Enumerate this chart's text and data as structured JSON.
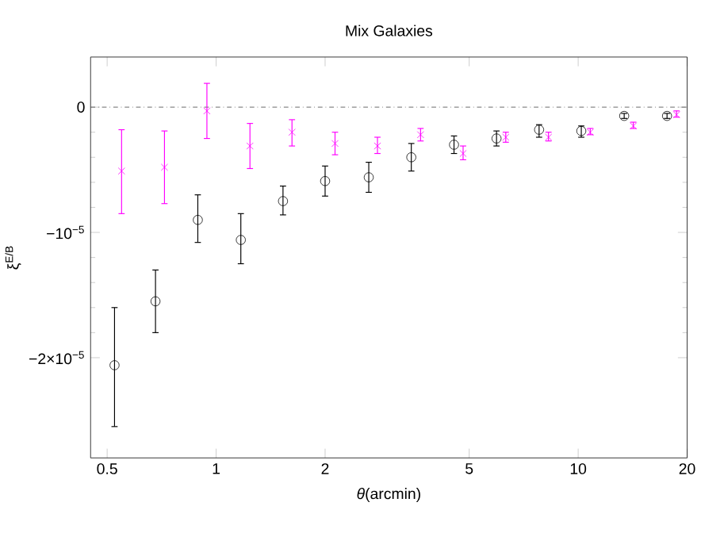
{
  "chart_data": {
    "type": "scatter",
    "title": "Mix Galaxies",
    "xlabel": "*θ*(arcmin)",
    "ylabel": "ξ$^{E/B}$",
    "log": "x",
    "xlim": [
      0.45,
      20
    ],
    "xticks": [
      0.5,
      1,
      2,
      5,
      10,
      20
    ],
    "ylim": [
      -2.8e-05,
      4e-06
    ],
    "yticks": [
      0,
      {
        "value": -1e-05,
        "label": "−10$^{−5}$"
      },
      {
        "value": -2e-05,
        "label": "−2×10$^{−5}$"
      }
    ],
    "ref_lines": [
      {
        "axis": "y",
        "value": 0,
        "line_style": "dashdot",
        "color": "#404040"
      }
    ],
    "series": [
      {
        "color": "#000000",
        "marker": "circle",
        "x": [
          0.524,
          0.68,
          0.89,
          1.17,
          1.53,
          2.0,
          2.64,
          3.46,
          4.54,
          5.95,
          7.8,
          10.2,
          13.4,
          17.6
        ],
        "values": [
          -2.06e-05,
          -1.55e-05,
          -9e-06,
          -1.06e-05,
          -7.5e-06,
          -5.9e-06,
          -5.6e-06,
          -4e-06,
          -3e-06,
          -2.5e-06,
          -1.8e-06,
          -1.9e-06,
          -7e-07,
          -7e-07
        ],
        "errors": [
          [
            -2.55e-05,
            -1.6e-05
          ],
          [
            -1.8e-05,
            -1.3e-05
          ],
          [
            -1.08e-05,
            -7e-06
          ],
          [
            -1.25e-05,
            -8.5e-06
          ],
          [
            -8.6e-06,
            -6.3e-06
          ],
          [
            -7.1e-06,
            -4.7e-06
          ],
          [
            -6.8e-06,
            -4.4e-06
          ],
          [
            -5.1e-06,
            -2.9e-06
          ],
          [
            -3.7e-06,
            -2.3e-06
          ],
          [
            -3.1e-06,
            -1.9e-06
          ],
          [
            -2.4e-06,
            -1.4e-06
          ],
          [
            -2.4e-06,
            -1.5e-06
          ],
          [
            -9e-07,
            -5e-07
          ],
          [
            -9e-07,
            -5e-07
          ]
        ]
      },
      {
        "color": "#ff00ff",
        "marker": "cross",
        "x": [
          0.548,
          0.72,
          0.943,
          1.24,
          1.62,
          2.13,
          2.79,
          3.67,
          4.81,
          6.31,
          8.28,
          10.8,
          14.2,
          18.7
        ],
        "values": [
          -5.1e-06,
          -4.8e-06,
          -3e-07,
          -3.1e-06,
          -2e-06,
          -2.9e-06,
          -3.1e-06,
          -2.2e-06,
          -3.7e-06,
          -2.4e-06,
          -2.4e-06,
          -2e-06,
          -1.5e-06,
          -6e-07
        ],
        "errors": [
          [
            -8.5e-06,
            -1.8e-06
          ],
          [
            -7.7e-06,
            -1.9e-06
          ],
          [
            -2.5e-06,
            1.9e-06
          ],
          [
            -4.9e-06,
            -1.3e-06
          ],
          [
            -3.1e-06,
            -1e-06
          ],
          [
            -3.8e-06,
            -2e-06
          ],
          [
            -3.7e-06,
            -2.4e-06
          ],
          [
            -2.7e-06,
            -1.7e-06
          ],
          [
            -4.2e-06,
            -3.1e-06
          ],
          [
            -2.8e-06,
            -2e-06
          ],
          [
            -2.7e-06,
            -2e-06
          ],
          [
            -2.2e-06,
            -1.7e-06
          ],
          [
            -1.7e-06,
            -1.2e-06
          ],
          [
            -8e-07,
            -3e-07
          ]
        ]
      }
    ]
  }
}
